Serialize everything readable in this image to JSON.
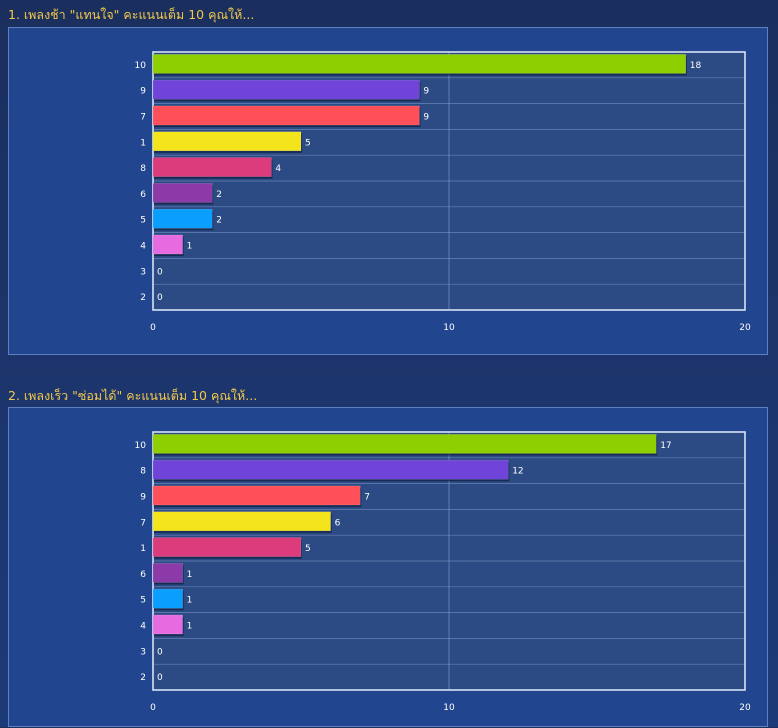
{
  "sections": [
    {
      "title": "1. เพลงช้า \"แทนใจ\" คะแนนเต็ม 10 คุณให้..."
    },
    {
      "title": "2. เพลงเร็ว \"ซ่อมได้\" คะแนนเต็ม 10 คุณให้..."
    }
  ],
  "colors": {
    "title": "#f2c84a",
    "plot_bg": "#2c4a83",
    "grid": "#8fa8d6",
    "palette": [
      "#8dcf00",
      "#7043d9",
      "#ff5059",
      "#f4e41b",
      "#dc3c7b",
      "#8c3aa8",
      "#0a9eff",
      "#e66ae0",
      "#7ee0ff",
      "#ffa040"
    ]
  },
  "chart_data": [
    {
      "type": "bar",
      "orientation": "horizontal",
      "categories": [
        "10",
        "9",
        "7",
        "1",
        "8",
        "6",
        "5",
        "4",
        "3",
        "2"
      ],
      "values": [
        18,
        9,
        9,
        5,
        4,
        2,
        2,
        1,
        0,
        0
      ],
      "xlim": [
        0,
        20
      ],
      "xticks": [
        "0",
        "10",
        "20"
      ],
      "grid": true
    },
    {
      "type": "bar",
      "orientation": "horizontal",
      "categories": [
        "10",
        "8",
        "9",
        "7",
        "1",
        "6",
        "5",
        "4",
        "3",
        "2"
      ],
      "values": [
        17,
        12,
        7,
        6,
        5,
        1,
        1,
        1,
        0,
        0
      ],
      "xlim": [
        0,
        20
      ],
      "xticks": [
        "0",
        "10",
        "20"
      ],
      "grid": true
    }
  ]
}
